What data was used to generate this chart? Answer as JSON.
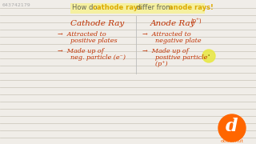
{
  "bg_color": "#f0ede8",
  "title_highlight_color": "#f5f0a0",
  "title_color": "#555544",
  "title_bold_color": "#ddaa00",
  "watermark_text": "643742179",
  "col1_header": "Cathode Ray",
  "col2_header": "Anode Ray",
  "col2_header_super": "(p⁺)",
  "col1_b1l1": "→  Attracted to",
  "col1_b1l2": "    positive plates",
  "col1_b2l1": "→  Made up of",
  "col1_b2l2": "    neg. particle (e⁻)",
  "col2_b1l1": "→  Attracted to",
  "col2_b1l2": "    negative plate",
  "col2_b2l1": "→  Made up of",
  "col2_b2l2": "    positive particle",
  "col2_b2l3": "    (p⁺)",
  "text_color": "#c03000",
  "header_color": "#c03000",
  "line_color": "#c8c4b8",
  "doubtnut_logo_color": "#ff6600",
  "circle_color": "#e8e840",
  "watermark_color": "#aaaaaa",
  "title_normal": "#666655",
  "title_underline_color": "#ddaa00"
}
